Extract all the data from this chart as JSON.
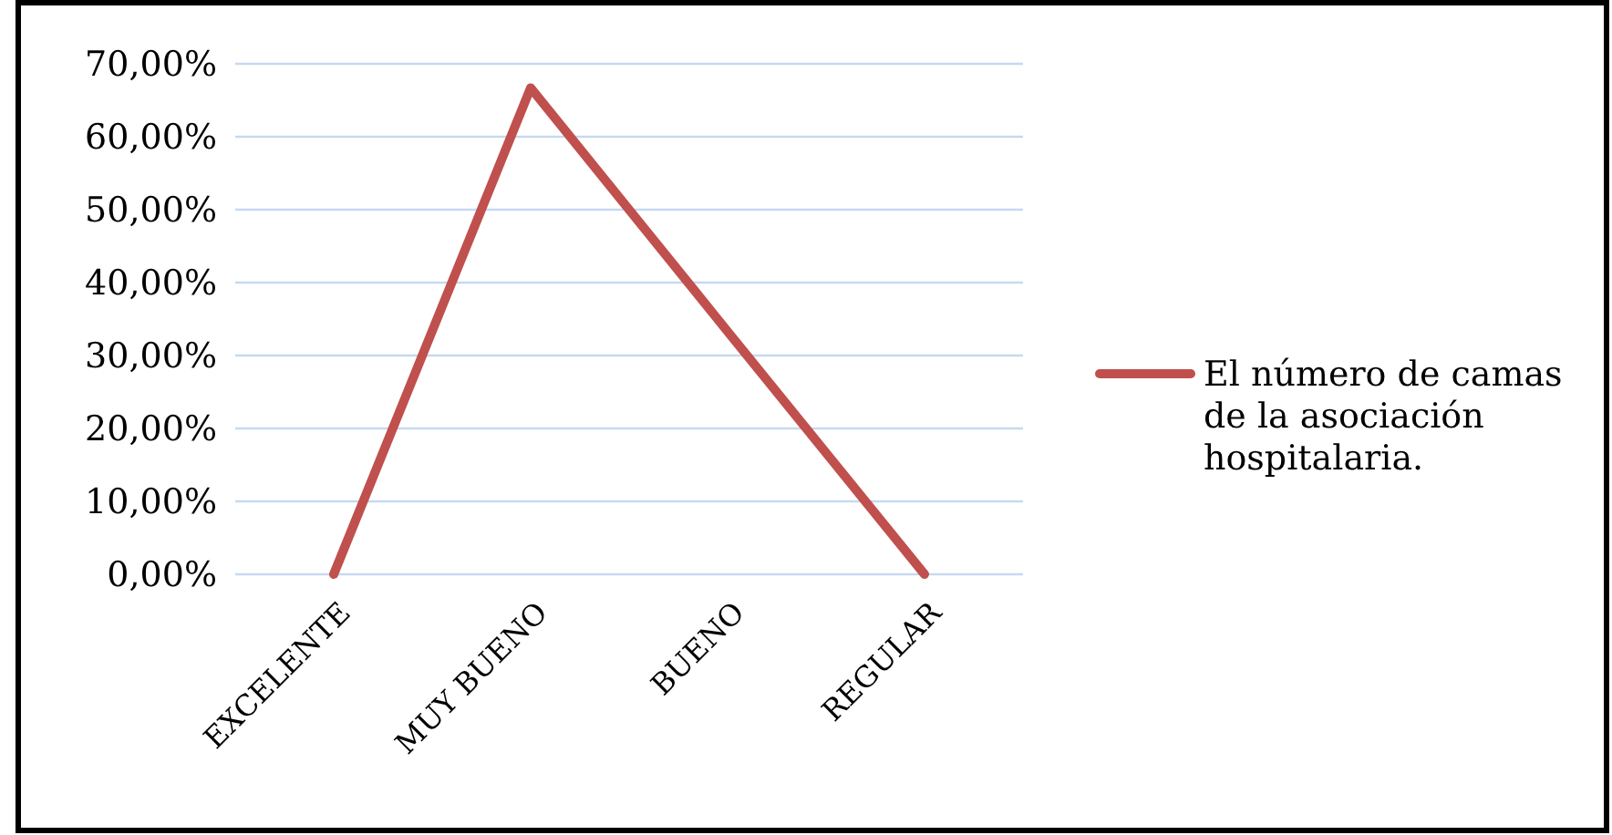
{
  "chart_data": {
    "type": "line",
    "categories": [
      "EXCELENTE",
      "MUY BUENO",
      "BUENO",
      "REGULAR"
    ],
    "series": [
      {
        "name": "El número de camas de la asociación hospitalaria.",
        "color": "#c0504d",
        "values": [
          0,
          66.7,
          33.3,
          0
        ]
      }
    ],
    "ylim": [
      0,
      70
    ],
    "yticks": [
      {
        "value": 0,
        "label": "0,00%"
      },
      {
        "value": 10,
        "label": "10,00%"
      },
      {
        "value": 20,
        "label": "20,00%"
      },
      {
        "value": 30,
        "label": "30,00%"
      },
      {
        "value": 40,
        "label": "40,00%"
      },
      {
        "value": 50,
        "label": "50,00%"
      },
      {
        "value": 60,
        "label": "60,00%"
      },
      {
        "value": 70,
        "label": "70,00%"
      }
    ],
    "grid": "y",
    "legend": "right",
    "marker": "none",
    "line_style": "solid"
  }
}
